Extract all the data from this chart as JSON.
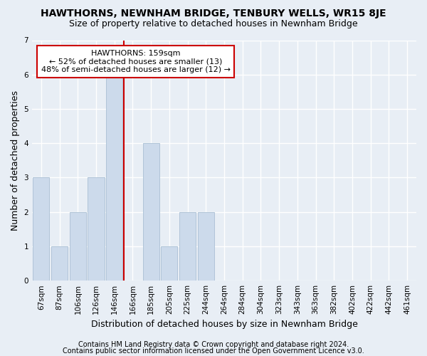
{
  "title": "HAWTHORNS, NEWNHAM BRIDGE, TENBURY WELLS, WR15 8JE",
  "subtitle": "Size of property relative to detached houses in Newnham Bridge",
  "xlabel": "Distribution of detached houses by size in Newnham Bridge",
  "ylabel": "Number of detached properties",
  "categories": [
    "67sqm",
    "87sqm",
    "106sqm",
    "126sqm",
    "146sqm",
    "166sqm",
    "185sqm",
    "205sqm",
    "225sqm",
    "244sqm",
    "264sqm",
    "284sqm",
    "304sqm",
    "323sqm",
    "343sqm",
    "363sqm",
    "382sqm",
    "402sqm",
    "422sqm",
    "442sqm",
    "461sqm"
  ],
  "values": [
    3,
    1,
    2,
    3,
    6,
    0,
    4,
    1,
    2,
    2,
    0,
    0,
    0,
    0,
    0,
    0,
    0,
    0,
    0,
    0,
    0
  ],
  "bar_color": "#ccdaeb",
  "bar_edge_color": "#b0c4d8",
  "property_line_x": 5,
  "property_line_color": "#cc0000",
  "annotation_text": "HAWTHORNS: 159sqm\n← 52% of detached houses are smaller (13)\n48% of semi-detached houses are larger (12) →",
  "annotation_box_facecolor": "#ffffff",
  "annotation_box_edgecolor": "#cc0000",
  "ylim": [
    0,
    7
  ],
  "yticks": [
    0,
    1,
    2,
    3,
    4,
    5,
    6,
    7
  ],
  "bg_color": "#e8eef5",
  "plot_bg_color": "#e8eef5",
  "grid_color": "#ffffff",
  "title_fontsize": 10,
  "subtitle_fontsize": 9,
  "tick_fontsize": 7.5,
  "ylabel_fontsize": 9,
  "xlabel_fontsize": 9,
  "annotation_fontsize": 8,
  "footer1": "Contains HM Land Registry data © Crown copyright and database right 2024.",
  "footer2": "Contains public sector information licensed under the Open Government Licence v3.0.",
  "footer_fontsize": 7
}
